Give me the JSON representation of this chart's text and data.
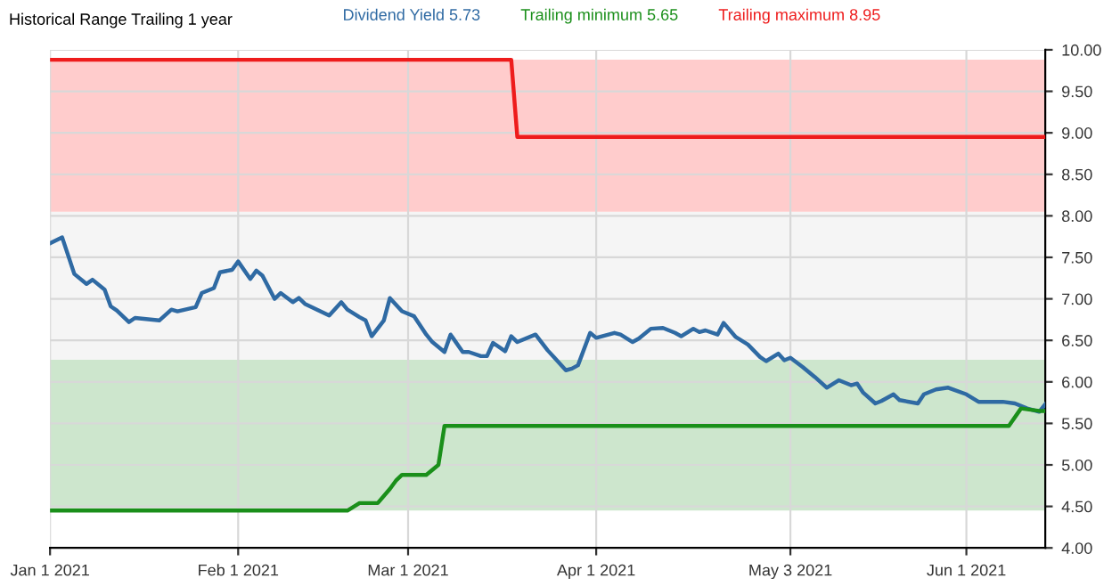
{
  "chart_data": {
    "type": "line",
    "title": "Historical Range Trailing 1 year",
    "series": [
      {
        "name": "Dividend Yield 5.73",
        "color": "#2f6aa3",
        "x": [
          "2021-01-01",
          "2021-01-03",
          "2021-01-05",
          "2021-01-07",
          "2021-01-08",
          "2021-01-10",
          "2021-01-11",
          "2021-01-12",
          "2021-01-14",
          "2021-01-15",
          "2021-01-19",
          "2021-01-21",
          "2021-01-22",
          "2021-01-25",
          "2021-01-26",
          "2021-01-28",
          "2021-01-29",
          "2021-01-31",
          "2021-02-01",
          "2021-02-03",
          "2021-02-04",
          "2021-02-05",
          "2021-02-07",
          "2021-02-08",
          "2021-02-10",
          "2021-02-11",
          "2021-02-12",
          "2021-02-16",
          "2021-02-18",
          "2021-02-19",
          "2021-02-21",
          "2021-02-22",
          "2021-02-23",
          "2021-02-25",
          "2021-02-26",
          "2021-02-28",
          "2021-03-02",
          "2021-03-04",
          "2021-03-05",
          "2021-03-07",
          "2021-03-08",
          "2021-03-10",
          "2021-03-11",
          "2021-03-13",
          "2021-03-14",
          "2021-03-15",
          "2021-03-17",
          "2021-03-18",
          "2021-03-19",
          "2021-03-22",
          "2021-03-24",
          "2021-03-25",
          "2021-03-27",
          "2021-03-28",
          "2021-03-29",
          "2021-03-31",
          "2021-04-01",
          "2021-04-04",
          "2021-04-05",
          "2021-04-07",
          "2021-04-08",
          "2021-04-10",
          "2021-04-12",
          "2021-04-14",
          "2021-04-15",
          "2021-04-17",
          "2021-04-18",
          "2021-04-19",
          "2021-04-21",
          "2021-04-22",
          "2021-04-24",
          "2021-04-26",
          "2021-04-28",
          "2021-04-29",
          "2021-05-01",
          "2021-05-02",
          "2021-05-03",
          "2021-05-05",
          "2021-05-07",
          "2021-05-09",
          "2021-05-11",
          "2021-05-13",
          "2021-05-14",
          "2021-05-15",
          "2021-05-17",
          "2021-05-18",
          "2021-05-20",
          "2021-05-21",
          "2021-05-24",
          "2021-05-25",
          "2021-05-27",
          "2021-05-29",
          "2021-06-01",
          "2021-06-03",
          "2021-06-07",
          "2021-06-09",
          "2021-06-11",
          "2021-06-13",
          "2021-06-14"
        ],
        "values": [
          7.67,
          7.74,
          7.3,
          7.18,
          7.23,
          7.11,
          6.91,
          6.86,
          6.72,
          6.77,
          6.74,
          6.87,
          6.85,
          6.9,
          7.07,
          7.13,
          7.32,
          7.35,
          7.45,
          7.24,
          7.34,
          7.28,
          7.0,
          7.07,
          6.96,
          7.01,
          6.94,
          6.8,
          6.96,
          6.87,
          6.78,
          6.74,
          6.55,
          6.74,
          7.01,
          6.85,
          6.79,
          6.57,
          6.48,
          6.36,
          6.57,
          6.36,
          6.36,
          6.31,
          6.31,
          6.47,
          6.37,
          6.55,
          6.48,
          6.57,
          6.38,
          6.3,
          6.14,
          6.16,
          6.2,
          6.59,
          6.53,
          6.59,
          6.57,
          6.48,
          6.52,
          6.64,
          6.65,
          6.59,
          6.55,
          6.64,
          6.6,
          6.62,
          6.57,
          6.71,
          6.54,
          6.45,
          6.3,
          6.25,
          6.34,
          6.26,
          6.29,
          6.18,
          6.06,
          5.93,
          6.02,
          5.96,
          5.98,
          5.87,
          5.74,
          5.77,
          5.85,
          5.78,
          5.74,
          5.85,
          5.91,
          5.93,
          5.85,
          5.76,
          5.76,
          5.74,
          5.68,
          5.64,
          5.73
        ]
      },
      {
        "name": "Trailing minimum 5.65",
        "color": "#1a8f1a",
        "x": [
          "2021-01-01",
          "2021-02-19",
          "2021-02-21",
          "2021-02-24",
          "2021-02-26",
          "2021-02-27",
          "2021-02-28",
          "2021-03-04",
          "2021-03-06",
          "2021-03-07",
          "2021-06-08",
          "2021-06-10",
          "2021-06-13",
          "2021-06-14"
        ],
        "values": [
          4.45,
          4.45,
          4.54,
          4.54,
          4.71,
          4.81,
          4.88,
          4.88,
          5.0,
          5.47,
          5.47,
          5.68,
          5.65,
          5.65
        ]
      },
      {
        "name": "Trailing maximum 8.95",
        "color": "#ee1c1c",
        "x": [
          "2021-01-01",
          "2021-03-18",
          "2021-03-19",
          "2021-06-14"
        ],
        "values": [
          9.88,
          9.88,
          8.95,
          8.95
        ]
      }
    ],
    "bands": [
      {
        "axis": "y",
        "from": 4.45,
        "to": 6.27,
        "color": "#cde6cd"
      },
      {
        "axis": "y",
        "from": 6.27,
        "to": 8.05,
        "color": "#f5f5f5"
      },
      {
        "axis": "y",
        "from": 8.05,
        "to": 9.88,
        "color": "#ffcccc"
      }
    ],
    "xlim": [
      "2021-01-01",
      "2021-06-14"
    ],
    "xticks": [
      {
        "value": "2021-01-01",
        "label": "Jan 1 2021"
      },
      {
        "value": "2021-02-01",
        "label": "Feb 1 2021"
      },
      {
        "value": "2021-03-01",
        "label": "Mar 1 2021"
      },
      {
        "value": "2021-04-01",
        "label": "Apr 1 2021"
      },
      {
        "value": "2021-05-03",
        "label": "May 3 2021"
      },
      {
        "value": "2021-06-01",
        "label": "Jun 1 2021"
      }
    ],
    "ylim": [
      4.0,
      10.0
    ],
    "yticks": [
      {
        "value": 4.0,
        "label": "4.00"
      },
      {
        "value": 4.5,
        "label": "4.50"
      },
      {
        "value": 5.0,
        "label": "5.00"
      },
      {
        "value": 5.5,
        "label": "5.50"
      },
      {
        "value": 6.0,
        "label": "6.00"
      },
      {
        "value": 6.5,
        "label": "6.50"
      },
      {
        "value": 7.0,
        "label": "7.00"
      },
      {
        "value": 7.5,
        "label": "7.50"
      },
      {
        "value": 8.0,
        "label": "8.00"
      },
      {
        "value": 8.5,
        "label": "8.50"
      },
      {
        "value": 9.0,
        "label": "9.00"
      },
      {
        "value": 9.5,
        "label": "9.50"
      },
      {
        "value": 10.0,
        "label": "10.00"
      }
    ],
    "grid": true,
    "legend": "top",
    "marker": "none",
    "line_style": "solid"
  }
}
